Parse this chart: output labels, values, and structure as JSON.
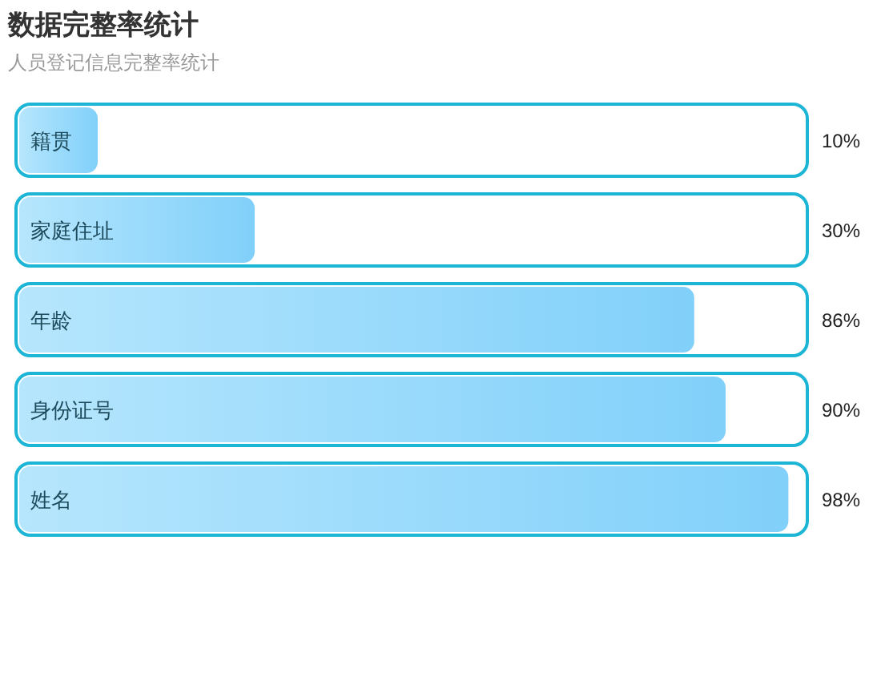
{
  "chart_data": {
    "type": "bar",
    "orientation": "horizontal",
    "title": "数据完整率统计",
    "subtitle": "人员登记信息完整率统计",
    "categories": [
      "籍贯",
      "家庭住址",
      "年龄",
      "身份证号",
      "姓名"
    ],
    "values": [
      10,
      30,
      86,
      90,
      98
    ],
    "value_labels": [
      "10%",
      "30%",
      "86%",
      "90%",
      "98%"
    ],
    "color": "#8ed8fc",
    "xlim": [
      0,
      100
    ],
    "tick_labels": "y"
  }
}
